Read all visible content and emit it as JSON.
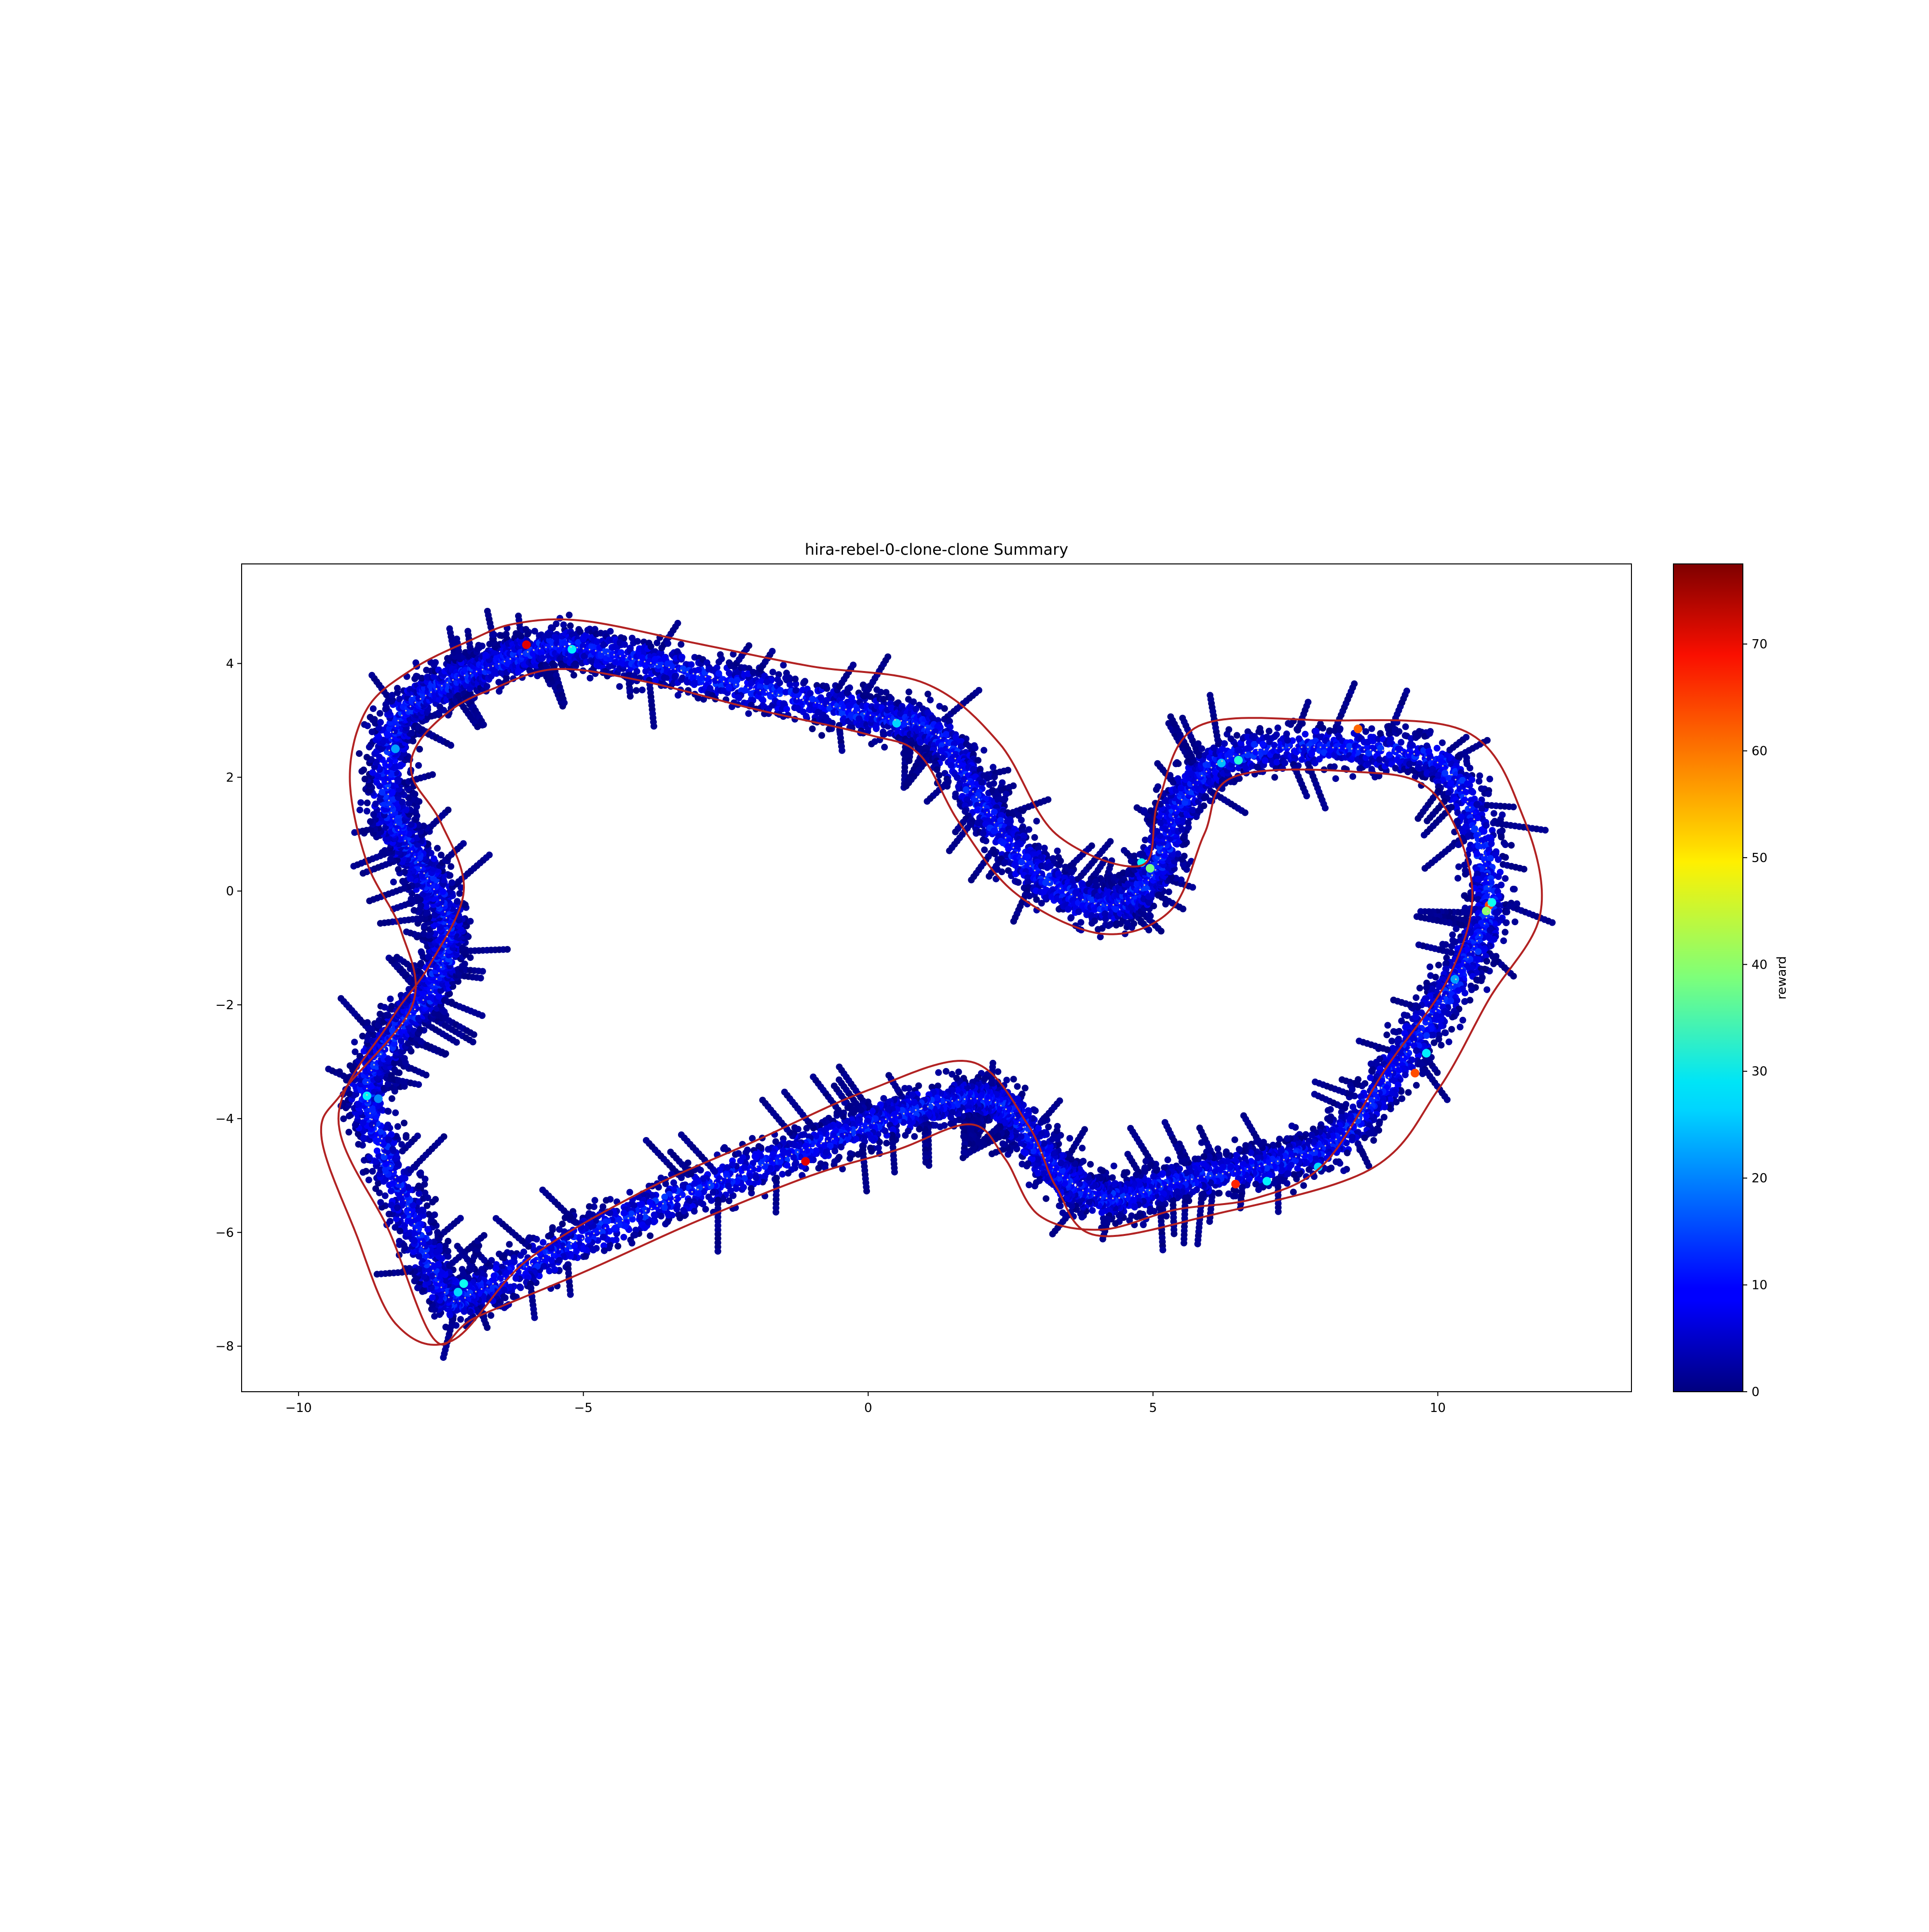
{
  "chart_data": {
    "type": "scatter",
    "title": "hira-rebel-0-clone-clone Summary",
    "xlabel": "",
    "ylabel": "",
    "xlim": [
      -11.0,
      13.4
    ],
    "ylim": [
      -8.8,
      5.75
    ],
    "xticks": [
      -10,
      -5,
      0,
      5,
      10
    ],
    "yticks": [
      -8,
      -6,
      -4,
      -2,
      0,
      2,
      4
    ],
    "grid": false,
    "colorbar": {
      "label": "reward",
      "range": [
        0,
        77.5
      ],
      "ticks": [
        0,
        10,
        20,
        30,
        40,
        50,
        60,
        70
      ],
      "colormap": "jet"
    },
    "track_color": "#b22222",
    "centerline": [
      [
        -6.6,
        3.95
      ],
      [
        -5.5,
        4.3
      ],
      [
        -4.0,
        4.05
      ],
      [
        -2.0,
        3.55
      ],
      [
        0.0,
        3.1
      ],
      [
        1.2,
        2.75
      ],
      [
        2.0,
        1.5
      ],
      [
        3.0,
        0.3
      ],
      [
        4.2,
        -0.25
      ],
      [
        5.0,
        0.3
      ],
      [
        5.5,
        1.6
      ],
      [
        6.5,
        2.4
      ],
      [
        8.5,
        2.5
      ],
      [
        10.2,
        2.1
      ],
      [
        10.9,
        0.0
      ],
      [
        10.4,
        -1.4
      ],
      [
        9.4,
        -2.9
      ],
      [
        8.3,
        -4.3
      ],
      [
        7.0,
        -4.8
      ],
      [
        5.5,
        -5.1
      ],
      [
        4.2,
        -5.4
      ],
      [
        3.3,
        -4.9
      ],
      [
        2.5,
        -3.9
      ],
      [
        1.8,
        -3.65
      ],
      [
        0.5,
        -3.95
      ],
      [
        -1.0,
        -4.5
      ],
      [
        -3.0,
        -5.25
      ],
      [
        -5.0,
        -6.1
      ],
      [
        -6.8,
        -7.0
      ],
      [
        -7.4,
        -7.1
      ],
      [
        -8.1,
        -5.5
      ],
      [
        -8.8,
        -3.6
      ],
      [
        -8.3,
        -2.5
      ],
      [
        -7.6,
        -1.6
      ],
      [
        -7.4,
        -0.5
      ],
      [
        -7.9,
        0.5
      ],
      [
        -8.4,
        1.5
      ],
      [
        -8.3,
        2.9
      ],
      [
        -7.5,
        3.6
      ]
    ],
    "inner_boundary": [
      [
        -6.6,
        3.55
      ],
      [
        -5.5,
        3.9
      ],
      [
        -4.0,
        3.7
      ],
      [
        -2.0,
        3.2
      ],
      [
        0.0,
        2.75
      ],
      [
        0.9,
        2.4
      ],
      [
        1.6,
        1.2
      ],
      [
        2.6,
        -0.05
      ],
      [
        4.1,
        -0.75
      ],
      [
        5.3,
        -0.35
      ],
      [
        5.9,
        1.0
      ],
      [
        6.4,
        2.0
      ],
      [
        8.5,
        2.1
      ],
      [
        9.9,
        1.75
      ],
      [
        10.6,
        0.1
      ],
      [
        10.2,
        -1.5
      ],
      [
        9.1,
        -3.1
      ],
      [
        8.0,
        -4.8
      ],
      [
        6.8,
        -5.4
      ],
      [
        5.4,
        -5.6
      ],
      [
        4.1,
        -5.95
      ],
      [
        3.0,
        -5.7
      ],
      [
        2.4,
        -4.7
      ],
      [
        1.8,
        -4.1
      ],
      [
        0.5,
        -4.55
      ],
      [
        -1.0,
        -5.0
      ],
      [
        -3.0,
        -5.8
      ],
      [
        -5.0,
        -6.7
      ],
      [
        -6.9,
        -7.5
      ],
      [
        -7.6,
        -7.9
      ],
      [
        -8.4,
        -6.0
      ],
      [
        -9.3,
        -4.0
      ],
      [
        -8.4,
        -2.3
      ],
      [
        -7.7,
        -1.3
      ],
      [
        -7.1,
        0.0
      ],
      [
        -7.5,
        1.2
      ],
      [
        -8.0,
        2.0
      ],
      [
        -7.9,
        2.6
      ],
      [
        -7.3,
        3.2
      ]
    ],
    "outer_boundary": [
      [
        -6.2,
        4.7
      ],
      [
        -5.0,
        4.75
      ],
      [
        -3.0,
        4.35
      ],
      [
        -1.0,
        3.95
      ],
      [
        1.0,
        3.65
      ],
      [
        2.3,
        2.6
      ],
      [
        3.3,
        1.0
      ],
      [
        4.8,
        0.45
      ],
      [
        5.1,
        1.6
      ],
      [
        5.8,
        2.9
      ],
      [
        8.0,
        3.0
      ],
      [
        10.5,
        2.8
      ],
      [
        11.5,
        1.3
      ],
      [
        11.8,
        -0.4
      ],
      [
        10.9,
        -1.9
      ],
      [
        10.0,
        -3.5
      ],
      [
        8.8,
        -4.9
      ],
      [
        6.0,
        -5.7
      ],
      [
        4.0,
        -6.05
      ],
      [
        3.3,
        -5.2
      ],
      [
        2.8,
        -4.1
      ],
      [
        1.8,
        -3.0
      ],
      [
        0.0,
        -3.5
      ],
      [
        -2.0,
        -4.4
      ],
      [
        -4.0,
        -5.3
      ],
      [
        -6.0,
        -6.5
      ],
      [
        -7.3,
        -7.9
      ],
      [
        -8.3,
        -7.6
      ],
      [
        -9.0,
        -6.0
      ],
      [
        -9.6,
        -4.3
      ],
      [
        -9.2,
        -3.5
      ],
      [
        -8.0,
        -2.0
      ],
      [
        -8.2,
        -0.7
      ],
      [
        -8.8,
        0.5
      ],
      [
        -9.1,
        2.0
      ],
      [
        -8.8,
        3.2
      ],
      [
        -8.0,
        3.9
      ],
      [
        -7.0,
        4.4
      ]
    ],
    "highlights": [
      {
        "x": -6.0,
        "y": 4.33,
        "reward": 70
      },
      {
        "x": -5.2,
        "y": 4.25,
        "reward": 28
      },
      {
        "x": 0.5,
        "y": 2.95,
        "reward": 26
      },
      {
        "x": 4.8,
        "y": 0.5,
        "reward": 30
      },
      {
        "x": 4.95,
        "y": 0.4,
        "reward": 38
      },
      {
        "x": 6.2,
        "y": 2.25,
        "reward": 24
      },
      {
        "x": 6.5,
        "y": 2.3,
        "reward": 32
      },
      {
        "x": 8.6,
        "y": 2.85,
        "reward": 60
      },
      {
        "x": 10.9,
        "y": -0.25,
        "reward": 62
      },
      {
        "x": 10.85,
        "y": -0.35,
        "reward": 40
      },
      {
        "x": 10.95,
        "y": -0.2,
        "reward": 30
      },
      {
        "x": 10.3,
        "y": -1.55,
        "reward": 22
      },
      {
        "x": 9.6,
        "y": -3.2,
        "reward": 62
      },
      {
        "x": 9.8,
        "y": -2.85,
        "reward": 28
      },
      {
        "x": 6.45,
        "y": -5.15,
        "reward": 65
      },
      {
        "x": 7.0,
        "y": -5.1,
        "reward": 28
      },
      {
        "x": 7.9,
        "y": -4.85,
        "reward": 26
      },
      {
        "x": -1.1,
        "y": -4.75,
        "reward": 70
      },
      {
        "x": -7.1,
        "y": -6.9,
        "reward": 30
      },
      {
        "x": -7.2,
        "y": -7.05,
        "reward": 26
      },
      {
        "x": -8.8,
        "y": -3.6,
        "reward": 28
      },
      {
        "x": -8.6,
        "y": -3.65,
        "reward": 20
      },
      {
        "x": -8.3,
        "y": 2.5,
        "reward": 22
      }
    ]
  }
}
